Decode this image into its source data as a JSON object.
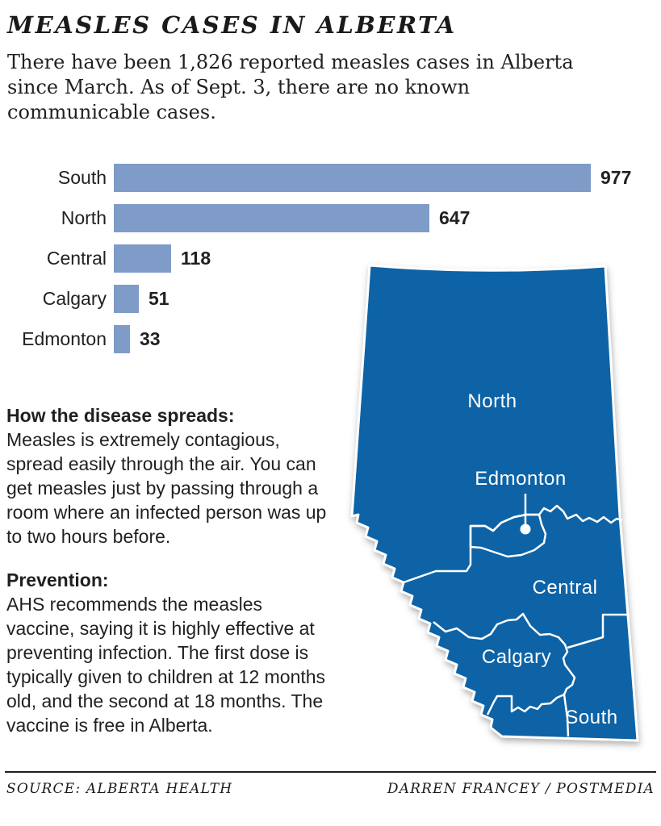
{
  "header": {
    "title": "MEASLES CASES IN ALBERTA",
    "deck": "There have been 1,826 reported measles cases in Alberta since March. As of Sept. 3, there are no known communicable cases."
  },
  "chart_data": {
    "type": "bar",
    "orientation": "horizontal",
    "categories": [
      "South",
      "North",
      "Central",
      "Calgary",
      "Edmonton"
    ],
    "values": [
      977,
      647,
      118,
      51,
      33
    ],
    "xlim": [
      0,
      1000
    ],
    "bar_color": "#7f9cc9",
    "value_label_color": "#231f20",
    "grid": false,
    "legend": "none",
    "title": "",
    "xlabel": "",
    "ylabel": ""
  },
  "sections": [
    {
      "heading": "How the disease spreads:",
      "body": "Measles is extremely contagious, spread easily through the air. You can get measles just by passing through a room where an infected person was up to two hours before."
    },
    {
      "heading": "Prevention:",
      "body": "AHS recommends the measles vaccine, saying it is highly effective at preventing infection. The first dose is typically given to children at 12 months old, and the second at 18 months. The vaccine is free in Alberta."
    }
  ],
  "map": {
    "fill_color": "#0d64a6",
    "border_color": "#ffffff",
    "region_labels": [
      "North",
      "Edmonton",
      "Central",
      "Calgary",
      "South"
    ]
  },
  "footer": {
    "source": "SOURCE: ALBERTA HEALTH",
    "credit": "DARREN FRANCEY / POSTMEDIA"
  }
}
